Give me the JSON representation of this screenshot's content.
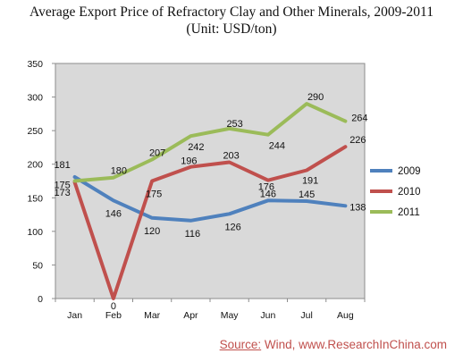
{
  "title_line1": "Average Export Price of Refractory Clay and Other Minerals, 2009-2011",
  "title_line2": "(Unit: USD/ton)",
  "source_label": "Source:",
  "source_text": " Wind, www.ResearchInChina.com",
  "chart_data": {
    "type": "line",
    "title": "Average Export Price of Refractory Clay and Other Minerals, 2009-2011",
    "subtitle": "(Unit: USD/ton)",
    "categories": [
      "Jan",
      "Feb",
      "Mar",
      "Apr",
      "May",
      "Jun",
      "Jul",
      "Aug"
    ],
    "ylim": [
      0,
      350
    ],
    "yticks": [
      0,
      50,
      100,
      150,
      200,
      250,
      300,
      350
    ],
    "grid": false,
    "legend_position": "right",
    "series": [
      {
        "name": "2009",
        "color": "#4f81bd",
        "values": [
          181,
          146,
          120,
          116,
          126,
          146,
          145,
          138
        ]
      },
      {
        "name": "2010",
        "color": "#c0504d",
        "values": [
          173,
          0,
          175,
          196,
          203,
          176,
          191,
          226
        ]
      },
      {
        "name": "2011",
        "color": "#9bbb59",
        "values": [
          175,
          180,
          207,
          242,
          253,
          244,
          290,
          264
        ]
      }
    ],
    "labels": [
      {
        "series": 0,
        "text": "181"
      },
      {
        "series": 0,
        "text": "146"
      },
      {
        "series": 0,
        "text": "120"
      },
      {
        "series": 0,
        "text": "116"
      },
      {
        "series": 0,
        "text": "126"
      },
      {
        "series": 0,
        "text": "146"
      },
      {
        "series": 0,
        "text": "145"
      },
      {
        "series": 0,
        "text": "138"
      },
      {
        "series": 1,
        "text": "173"
      },
      {
        "series": 1,
        "text": "0"
      },
      {
        "series": 1,
        "text": "175"
      },
      {
        "series": 1,
        "text": "196"
      },
      {
        "series": 1,
        "text": "203"
      },
      {
        "series": 1,
        "text": "176"
      },
      {
        "series": 1,
        "text": "191"
      },
      {
        "series": 1,
        "text": "226"
      },
      {
        "series": 2,
        "text": "175"
      },
      {
        "series": 2,
        "text": "180"
      },
      {
        "series": 2,
        "text": "207"
      },
      {
        "series": 2,
        "text": "242"
      },
      {
        "series": 2,
        "text": "253"
      },
      {
        "series": 2,
        "text": "244"
      },
      {
        "series": 2,
        "text": "290"
      },
      {
        "series": 2,
        "text": "264"
      }
    ]
  }
}
